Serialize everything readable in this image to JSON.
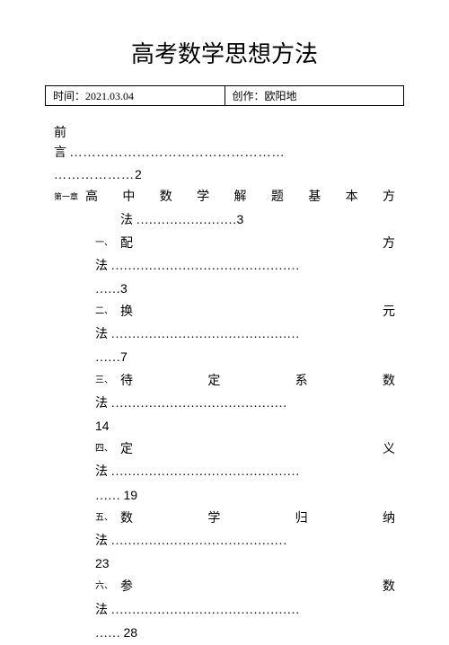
{
  "title": "高考数学思想方法",
  "meta": {
    "time_label": "时间：",
    "time_value": "2021.03.04",
    "author_label": "创作：",
    "author_value": "欧阳地"
  },
  "preface": {
    "char1": "前",
    "char2": "言",
    "dots1": "…………………………………………",
    "dots2": "………………",
    "page": "2"
  },
  "chapter1": {
    "label": "第一章",
    "title_chars": "高中数学解题基本方",
    "title_line2": "法 ……………………",
    "page": "3"
  },
  "items": [
    {
      "label": "一、",
      "title": "配方",
      "line2": "法 ………………………………………",
      "dots": "……",
      "page": "3"
    },
    {
      "label": "二、",
      "title": "换元",
      "line2": "法 ………………………………………",
      "dots": "……",
      "page": "7"
    },
    {
      "label": "三、",
      "title": "待定系数",
      "line2": "法 ……………………………………",
      "dots": "",
      "page": "14"
    },
    {
      "label": "四、",
      "title": "定义",
      "line2": "法 ………………………………………",
      "dots": "…… ",
      "page": "19"
    },
    {
      "label": "五、",
      "title": "数学归纳",
      "line2": "法 ……………………………………",
      "dots": "",
      "page": "23"
    },
    {
      "label": "六、",
      "title": "参数",
      "line2": "法 ………………………………………",
      "dots": "…… ",
      "page": "28"
    }
  ]
}
